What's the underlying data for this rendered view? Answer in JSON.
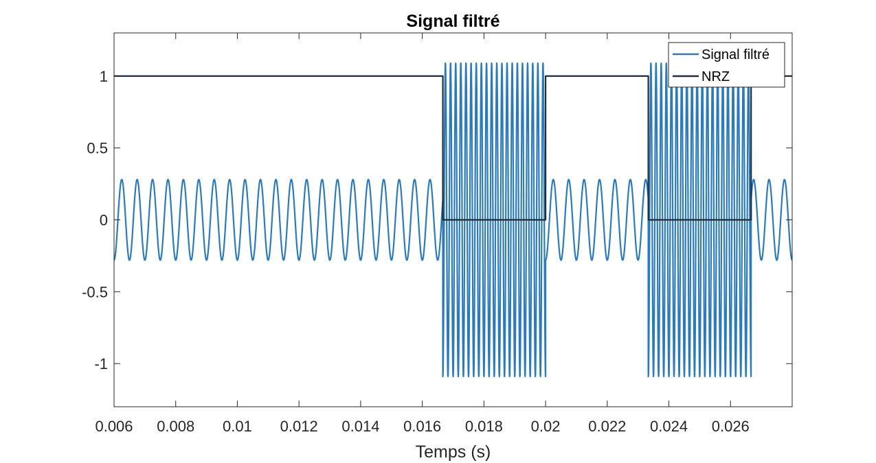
{
  "chart_data": {
    "type": "line",
    "title": "Signal filtré",
    "xlabel": "Temps (s)",
    "ylabel": "",
    "xlim": [
      0.006,
      0.028
    ],
    "ylim": [
      -1.3,
      1.3
    ],
    "grid": false,
    "legend_position": "top-right",
    "x_ticks": [
      0.006,
      0.008,
      0.01,
      0.012,
      0.014,
      0.016,
      0.018,
      0.02,
      0.022,
      0.024,
      0.026
    ],
    "x_tick_labels": [
      "0.006",
      "0.008",
      "0.01",
      "0.012",
      "0.014",
      "0.016",
      "0.018",
      "0.02",
      "0.022",
      "0.024",
      "0.026"
    ],
    "y_ticks": [
      1,
      0.5,
      0,
      -0.5,
      -1
    ],
    "y_tick_labels": [
      "1",
      "0.5",
      "0",
      "-0.5",
      "-1"
    ],
    "series": [
      {
        "name": "Signal filtré",
        "color": "#2b7bba",
        "kind": "fsk-oscillation",
        "segments": [
          {
            "x_start": 0.006,
            "x_end": 0.016667,
            "amplitude": 0.28,
            "frequency_hz": 2000
          },
          {
            "x_start": 0.016667,
            "x_end": 0.02,
            "amplitude": 1.09,
            "frequency_hz": 6000
          },
          {
            "x_start": 0.02,
            "x_end": 0.023333,
            "amplitude": 0.28,
            "frequency_hz": 2000
          },
          {
            "x_start": 0.023333,
            "x_end": 0.026667,
            "amplitude": 1.09,
            "frequency_hz": 6000
          },
          {
            "x_start": 0.026667,
            "x_end": 0.028,
            "amplitude": 0.28,
            "frequency_hz": 2000
          }
        ]
      },
      {
        "name": "NRZ",
        "color": "#1f2d3d",
        "kind": "step",
        "points": [
          [
            0.006,
            1
          ],
          [
            0.016667,
            1
          ],
          [
            0.016667,
            0
          ],
          [
            0.02,
            0
          ],
          [
            0.02,
            1
          ],
          [
            0.023333,
            1
          ],
          [
            0.023333,
            0
          ],
          [
            0.026667,
            0
          ],
          [
            0.026667,
            1
          ],
          [
            0.028,
            1
          ]
        ]
      }
    ]
  }
}
